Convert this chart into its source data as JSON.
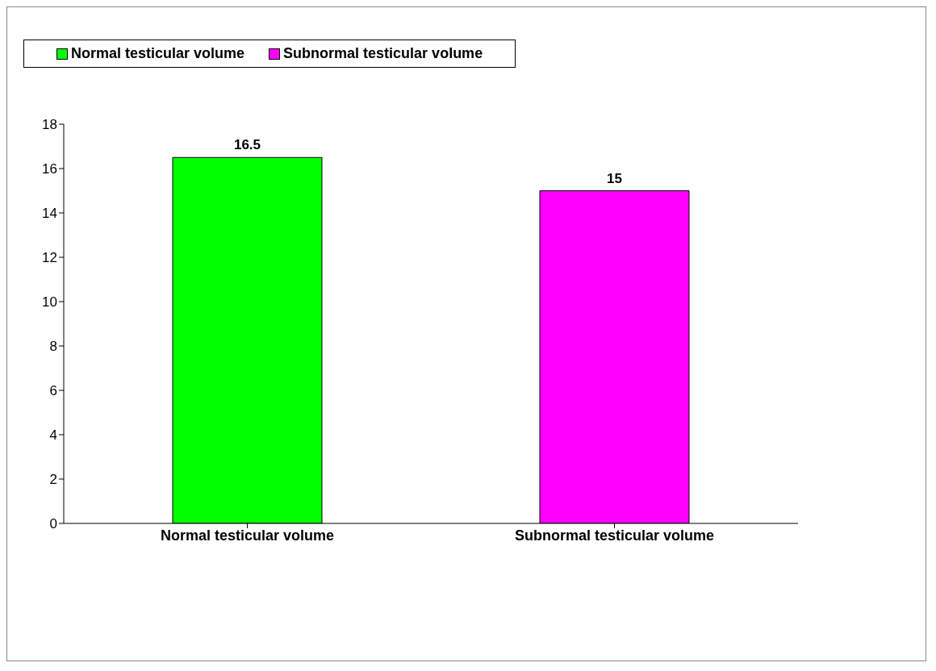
{
  "chart_data": {
    "type": "bar",
    "categories": [
      "Normal testicular volume",
      "Subnormal testicular volume"
    ],
    "series": [
      {
        "name": "Normal testicular volume",
        "color": "#00ff00",
        "values": [
          16.5,
          null
        ]
      },
      {
        "name": "Subnormal testicular volume",
        "color": "#ff00ff",
        "values": [
          null,
          15
        ]
      }
    ],
    "ylim": [
      0,
      18
    ],
    "yticks": [
      0,
      2,
      4,
      6,
      8,
      10,
      12,
      14,
      16,
      18
    ],
    "data_labels": true,
    "legend": "top",
    "grid": false
  }
}
